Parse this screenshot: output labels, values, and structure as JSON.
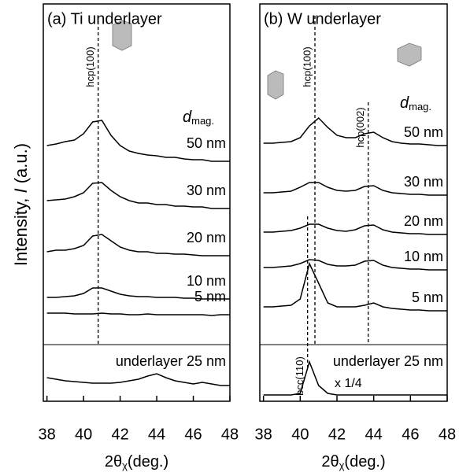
{
  "figure": {
    "ylabel": [
      "Intensity, ",
      "I",
      " (a.u.)"
    ]
  },
  "chart_data": [
    {
      "type": "line",
      "title": "(a) Ti underlayer",
      "xlabel": [
        "2θ",
        "χ",
        "(deg.)"
      ],
      "legend_title": [
        "d",
        "mag."
      ],
      "x": [
        38,
        38.5,
        39,
        39.5,
        40,
        40.5,
        41,
        41.5,
        42,
        42.5,
        43,
        43.5,
        44,
        44.5,
        45,
        45.5,
        46,
        46.5,
        47,
        47.5,
        48
      ],
      "xlim": [
        37.8,
        48.0
      ],
      "xticks": [
        38,
        40,
        42,
        44,
        46,
        48
      ],
      "ylim": [
        0,
        505
      ],
      "series": [
        {
          "name": "50 nm",
          "color": "#000000",
          "values": [
            325,
            327,
            330,
            332,
            340,
            355,
            357,
            338,
            325,
            318,
            315,
            313,
            312,
            310,
            310,
            308,
            307,
            307,
            305,
            305,
            305
          ]
        },
        {
          "name": "30 nm",
          "color": "#000000",
          "values": [
            255,
            256,
            257,
            260,
            265,
            277,
            278,
            268,
            260,
            255,
            252,
            252,
            250,
            250,
            248,
            248,
            247,
            247,
            245,
            245,
            245
          ]
        },
        {
          "name": "20 nm",
          "color": "#000000",
          "values": [
            190,
            192,
            192,
            194,
            198,
            210,
            212,
            204,
            196,
            192,
            190,
            190,
            188,
            188,
            187,
            187,
            186,
            185,
            185,
            185,
            185
          ]
        },
        {
          "name": "10 nm",
          "color": "#000000",
          "values": [
            132,
            132,
            133,
            134,
            137,
            144,
            144,
            140,
            136,
            134,
            133,
            133,
            132,
            132,
            132,
            131,
            131,
            130,
            130,
            130,
            130
          ]
        },
        {
          "name": "5 nm",
          "color": "#000000",
          "values": [
            112,
            112,
            112,
            111,
            111,
            111,
            112,
            111,
            111,
            110,
            110,
            111,
            110,
            110,
            110,
            110,
            110,
            110,
            109,
            110,
            110
          ]
        },
        {
          "name": "underlayer 25 nm",
          "color": "#000000",
          "values": [
            30,
            28,
            26,
            25,
            24,
            23,
            23,
            23,
            24,
            26,
            28,
            32,
            35,
            30,
            26,
            24,
            22,
            24,
            22,
            20,
            20
          ]
        }
      ],
      "reference_lines": [
        {
          "x": 40.8,
          "label": "hcp(100)"
        }
      ]
    },
    {
      "type": "line",
      "title": "(b) W underlayer",
      "xlabel": [
        "2θ",
        "χ",
        "(deg.)"
      ],
      "legend_title": [
        "d",
        "mag."
      ],
      "x": [
        38,
        38.5,
        39,
        39.5,
        40,
        40.5,
        41,
        41.5,
        42,
        42.5,
        43,
        43.5,
        44,
        44.5,
        45,
        45.5,
        46,
        46.5,
        47,
        47.5,
        48
      ],
      "xlim": [
        37.8,
        48.0
      ],
      "xticks": [
        38,
        40,
        42,
        44,
        46,
        48
      ],
      "ylim": [
        0,
        505
      ],
      "series": [
        {
          "name": "50 nm",
          "color": "#000000",
          "values": [
            328,
            328,
            329,
            330,
            335,
            350,
            360,
            348,
            338,
            335,
            335,
            340,
            342,
            335,
            330,
            328,
            327,
            327,
            326,
            325,
            325
          ]
        },
        {
          "name": "30 nm",
          "color": "#000000",
          "values": [
            265,
            265,
            266,
            267,
            272,
            278,
            278,
            272,
            268,
            267,
            268,
            273,
            274,
            268,
            265,
            264,
            263,
            263,
            262,
            262,
            262
          ]
        },
        {
          "name": "20 nm",
          "color": "#000000",
          "values": [
            215,
            215,
            216,
            217,
            220,
            225,
            225,
            220,
            217,
            216,
            218,
            223,
            224,
            218,
            215,
            214,
            213,
            213,
            212,
            212,
            212
          ]
        },
        {
          "name": "10 nm",
          "color": "#000000",
          "values": [
            170,
            170,
            171,
            172,
            175,
            180,
            179,
            174,
            172,
            172,
            173,
            178,
            179,
            173,
            170,
            169,
            168,
            168,
            167,
            167,
            167
          ]
        },
        {
          "name": "5 nm",
          "color": "#000000",
          "values": [
            120,
            120,
            121,
            122,
            130,
            175,
            150,
            125,
            120,
            120,
            120,
            122,
            125,
            120,
            118,
            117,
            116,
            116,
            115,
            115,
            115
          ]
        },
        {
          "name": "underlayer 25 nm",
          "color": "#000000",
          "values": [
            8,
            8,
            8,
            8,
            10,
            50,
            20,
            10,
            8,
            8,
            8,
            8,
            8,
            8,
            8,
            8,
            8,
            8,
            8,
            8,
            8
          ]
        }
      ],
      "reference_lines": [
        {
          "x": 40.8,
          "label": "hcp(100)"
        },
        {
          "x": 43.7,
          "label": "hcp(002)"
        },
        {
          "x": 40.4,
          "label": "bcc(110)"
        }
      ],
      "annotations": [
        "x 1/4"
      ]
    }
  ]
}
